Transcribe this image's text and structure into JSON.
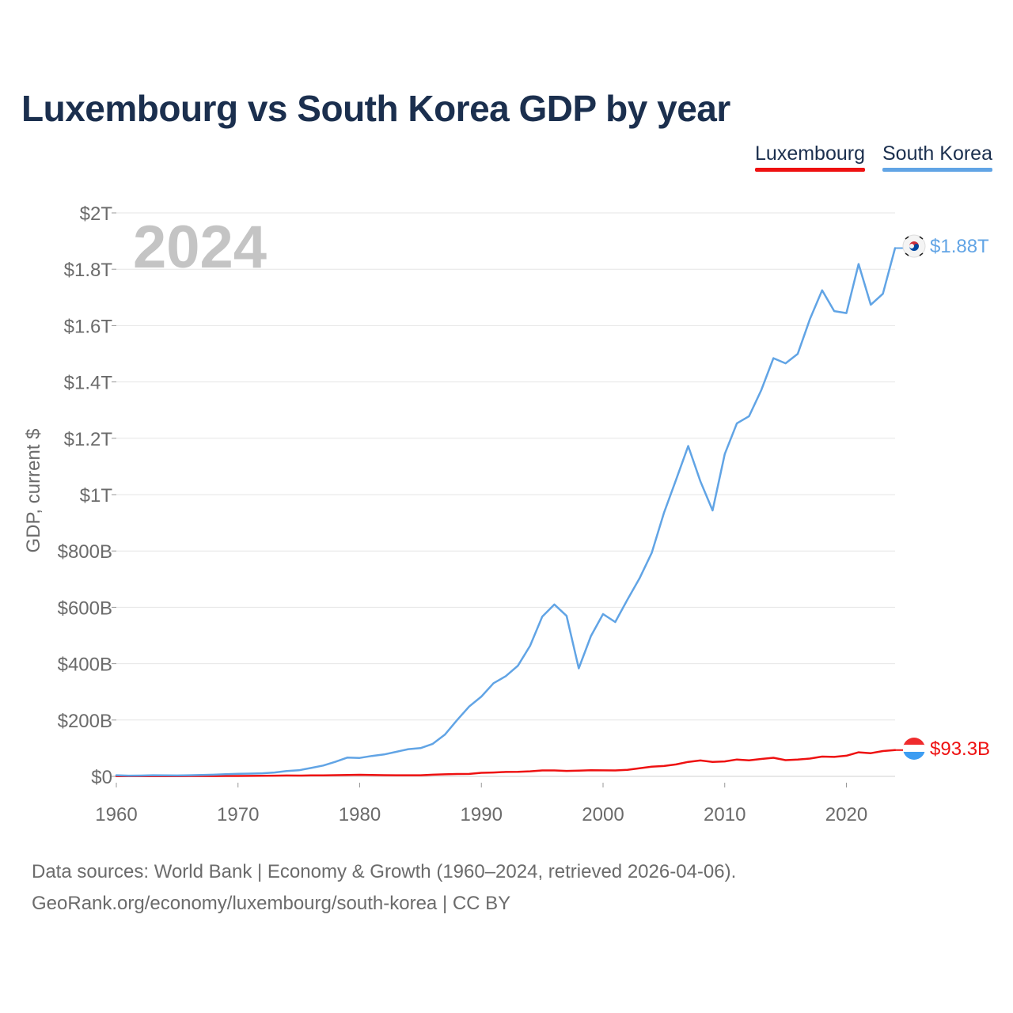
{
  "chart_data": {
    "type": "line",
    "title": "Luxembourg vs South Korea GDP by year",
    "ylabel": "GDP, current $",
    "xlabel": "",
    "year_label": "2024",
    "xlim": [
      1960,
      2024
    ],
    "ylim": [
      -30,
      2000
    ],
    "y_ticks": [
      {
        "value": 0,
        "label": "$0"
      },
      {
        "value": 200,
        "label": "$200B"
      },
      {
        "value": 400,
        "label": "$400B"
      },
      {
        "value": 600,
        "label": "$600B"
      },
      {
        "value": 800,
        "label": "$800B"
      },
      {
        "value": 1000,
        "label": "$1T"
      },
      {
        "value": 1200,
        "label": "$1.2T"
      },
      {
        "value": 1400,
        "label": "$1.4T"
      },
      {
        "value": 1600,
        "label": "$1.6T"
      },
      {
        "value": 1800,
        "label": "$1.8T"
      },
      {
        "value": 2000,
        "label": "$2T"
      }
    ],
    "x_ticks": [
      {
        "value": 1960,
        "label": "1960"
      },
      {
        "value": 1970,
        "label": "1970"
      },
      {
        "value": 1980,
        "label": "1980"
      },
      {
        "value": 1990,
        "label": "1990"
      },
      {
        "value": 2000,
        "label": "2000"
      },
      {
        "value": 2010,
        "label": "2010"
      },
      {
        "value": 2020,
        "label": "2020"
      }
    ],
    "value_unit": "billion USD",
    "series": [
      {
        "name": "Luxembourg",
        "color": "#ee1111",
        "end_label": "$93.3B",
        "flag": "luxembourg-flag",
        "x": [
          1960,
          1961,
          1962,
          1963,
          1964,
          1965,
          1966,
          1967,
          1968,
          1969,
          1970,
          1971,
          1972,
          1973,
          1974,
          1975,
          1976,
          1977,
          1978,
          1979,
          1980,
          1981,
          1982,
          1983,
          1984,
          1985,
          1986,
          1987,
          1988,
          1989,
          1990,
          1991,
          1992,
          1993,
          1994,
          1995,
          1996,
          1997,
          1998,
          1999,
          2000,
          2001,
          2002,
          2003,
          2004,
          2005,
          2006,
          2007,
          2008,
          2009,
          2010,
          2011,
          2012,
          2013,
          2014,
          2015,
          2016,
          2017,
          2018,
          2019,
          2020,
          2021,
          2022,
          2023,
          2024
        ],
        "values": [
          0.7,
          0.7,
          0.8,
          0.8,
          0.9,
          0.9,
          1.0,
          1.0,
          1.1,
          1.3,
          1.5,
          1.6,
          2.0,
          2.6,
          3.0,
          2.9,
          3.3,
          3.6,
          4.2,
          5.0,
          5.6,
          4.9,
          4.3,
          4.0,
          3.9,
          4.0,
          5.9,
          7.4,
          8.3,
          8.7,
          12.7,
          13.7,
          15.7,
          16.0,
          17.9,
          21.1,
          21.2,
          19.3,
          20.2,
          21.6,
          21.3,
          21.0,
          23.0,
          28.6,
          34.3,
          36.9,
          42.4,
          51.3,
          56.4,
          51.4,
          53.2,
          59.9,
          56.7,
          61.7,
          66.1,
          57.7,
          59.7,
          63.3,
          70.3,
          69.1,
          73.3,
          85.5,
          82.3,
          89.9,
          93.3
        ]
      },
      {
        "name": "South Korea",
        "color": "#61a4e5",
        "end_label": "$1.88T",
        "flag": "south-korea-flag",
        "x": [
          1960,
          1961,
          1962,
          1963,
          1964,
          1965,
          1966,
          1967,
          1968,
          1969,
          1970,
          1971,
          1972,
          1973,
          1974,
          1975,
          1976,
          1977,
          1978,
          1979,
          1980,
          1981,
          1982,
          1983,
          1984,
          1985,
          1986,
          1987,
          1988,
          1989,
          1990,
          1991,
          1992,
          1993,
          1994,
          1995,
          1996,
          1997,
          1998,
          1999,
          2000,
          2001,
          2002,
          2003,
          2004,
          2005,
          2006,
          2007,
          2008,
          2009,
          2010,
          2011,
          2012,
          2013,
          2014,
          2015,
          2016,
          2017,
          2018,
          2019,
          2020,
          2021,
          2022,
          2023,
          2024
        ],
        "values": [
          4.0,
          2.4,
          2.8,
          3.8,
          3.5,
          3.1,
          3.8,
          4.7,
          5.9,
          7.5,
          9.0,
          9.9,
          10.9,
          13.9,
          19.2,
          21.7,
          29.7,
          38.4,
          51.7,
          66.8,
          65.4,
          72.4,
          77.8,
          87.0,
          96.6,
          100.3,
          115.5,
          147.9,
          199.6,
          248.0,
          283.4,
          330.6,
          355.5,
          392.7,
          463.6,
          566.6,
          610.2,
          569.8,
          383.3,
          497.5,
          576.2,
          547.7,
          627.2,
          702.7,
          793.2,
          934.9,
          1053.2,
          1172.6,
          1047.3,
          943.7,
          1144.1,
          1253.2,
          1278.4,
          1370.8,
          1484.3,
          1466.0,
          1499.7,
          1623.1,
          1725.4,
          1651.4,
          1644.3,
          1818.4,
          1673.9,
          1712.8,
          1875.0
        ]
      }
    ]
  },
  "legend": [
    "Luxembourg",
    "South Korea"
  ],
  "source": {
    "line1": "Data sources: World Bank | Economy & Growth (1960–2024, retrieved 2026-04-06).",
    "line2": "GeoRank.org/economy/luxembourg/south-korea | CC BY"
  },
  "colors": {
    "title": "#1b2f4e",
    "grid": "#e6e6e6",
    "axis_text": "#6b6b6b",
    "year_watermark": "#c4c4c4"
  }
}
